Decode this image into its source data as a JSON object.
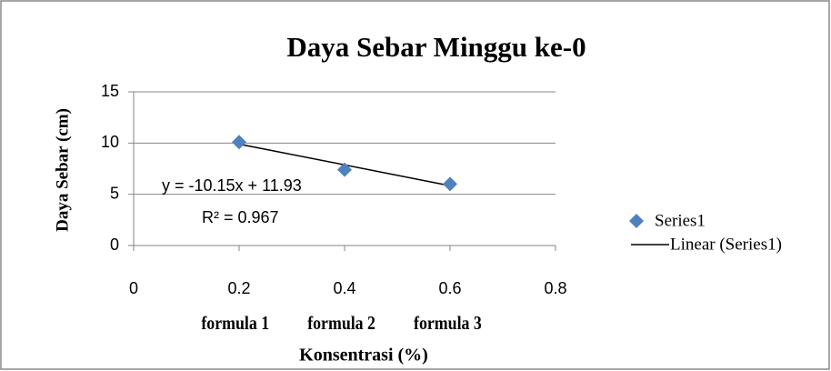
{
  "chart_data": {
    "type": "scatter",
    "title": "Daya Sebar Minggu ke-0",
    "x_label": "Konsentrasi (%)",
    "y_label": "Daya Sebar (cm)",
    "series": [
      {
        "name": "Series1",
        "color": "#4f81bd",
        "x": [
          0.2,
          0.4,
          0.6
        ],
        "values": [
          10.1,
          7.4,
          6.0
        ]
      }
    ],
    "trendline": {
      "name": "Linear (Series1)",
      "equation": "y = -10.15x + 11.93",
      "r2": "R² = 0.967",
      "slope": -10.15,
      "intercept": 11.93,
      "color": "#000000"
    },
    "annotations": [
      "formula 1",
      "formula 2",
      "formula 3"
    ],
    "xlim": [
      0,
      0.8
    ],
    "xticks": [
      0,
      0.2,
      0.4,
      0.6,
      0.8
    ],
    "ylim": [
      0,
      15
    ],
    "yticks": [
      0,
      5,
      10,
      15
    ],
    "grid": true,
    "legend": "right"
  }
}
